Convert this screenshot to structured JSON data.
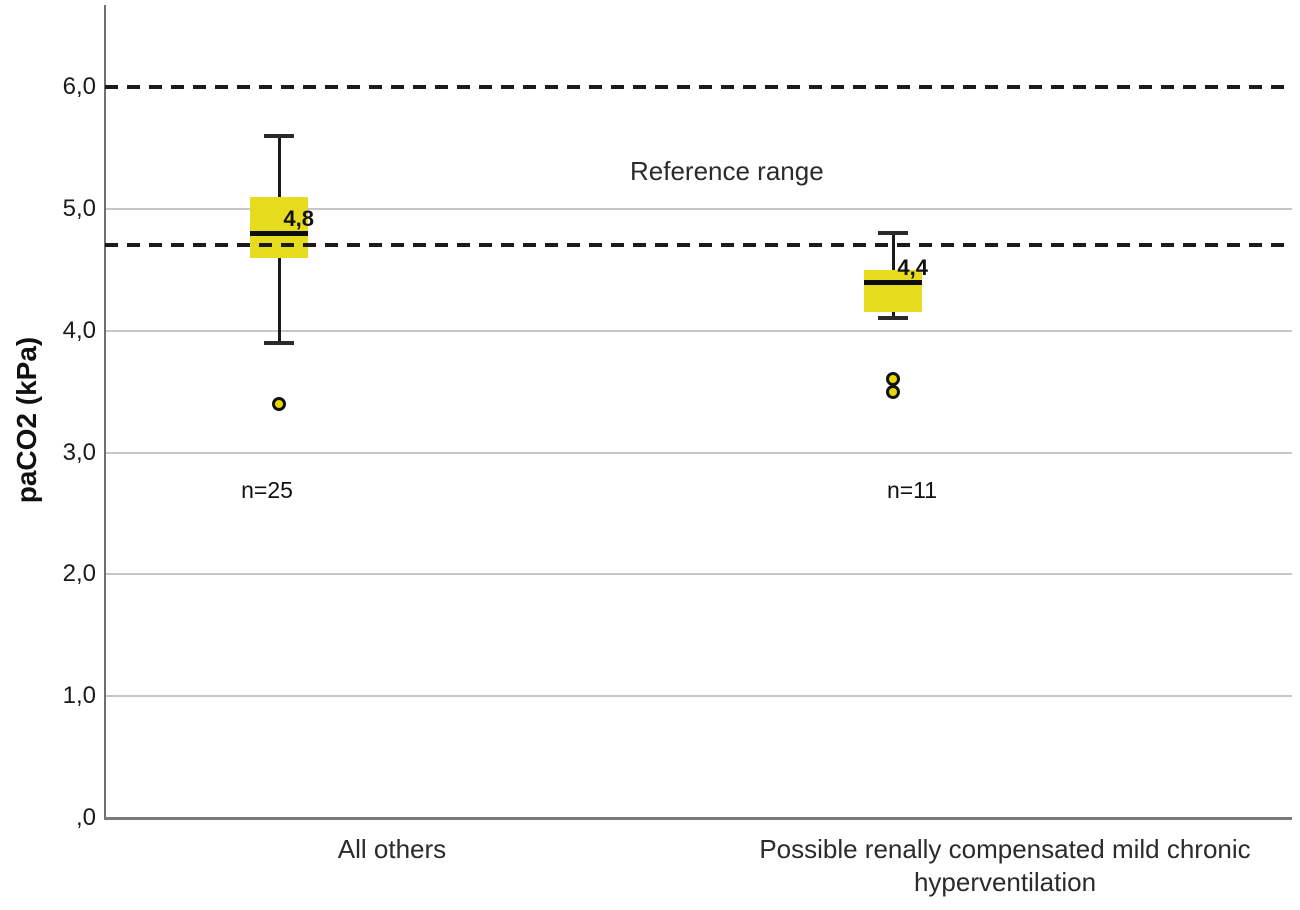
{
  "chart_data": {
    "type": "boxplot",
    "title": "",
    "ylabel": "paCO2 (kPa)",
    "xlabel": "",
    "ylim": [
      0,
      6.67
    ],
    "grid": "horizontal",
    "decimal_style": "comma",
    "yticks": [
      {
        "value": 0,
        "label": ",0"
      },
      {
        "value": 1,
        "label": "1,0"
      },
      {
        "value": 2,
        "label": "2,0"
      },
      {
        "value": 3,
        "label": "3,0"
      },
      {
        "value": 4,
        "label": "4,0"
      },
      {
        "value": 5,
        "label": "5,0"
      },
      {
        "value": 6,
        "label": "6,0"
      }
    ],
    "gridlines": [
      1,
      2,
      3,
      4,
      5
    ],
    "reference_lines": [
      {
        "value": 6.0,
        "style": "dashed"
      },
      {
        "value": 4.7,
        "style": "dashed"
      }
    ],
    "reference_label": "Reference range",
    "series": [
      {
        "category": "All others",
        "n_label": "n=25",
        "median": 4.8,
        "median_label": "4,8",
        "q1": 4.6,
        "q3": 5.1,
        "whisker_low": 3.9,
        "whisker_high": 5.6,
        "outliers": [
          3.4
        ]
      },
      {
        "category": "Possible renally compensated mild chronic hyperventilation",
        "n_label": "n=11",
        "median": 4.4,
        "median_label": "4,4",
        "q1": 4.15,
        "q3": 4.5,
        "whisker_low": 4.1,
        "whisker_high": 4.8,
        "outliers": [
          3.6,
          3.5
        ]
      }
    ],
    "colors": {
      "box_fill": "#e7db1e",
      "outlier_fill": "#e8d800",
      "median_line": "#0d0d0d",
      "whisker": "#1a1a1a",
      "reference_line": "#1b1b1b",
      "gridline": "#c6c6c6",
      "axis": "#6f6f6f"
    }
  }
}
